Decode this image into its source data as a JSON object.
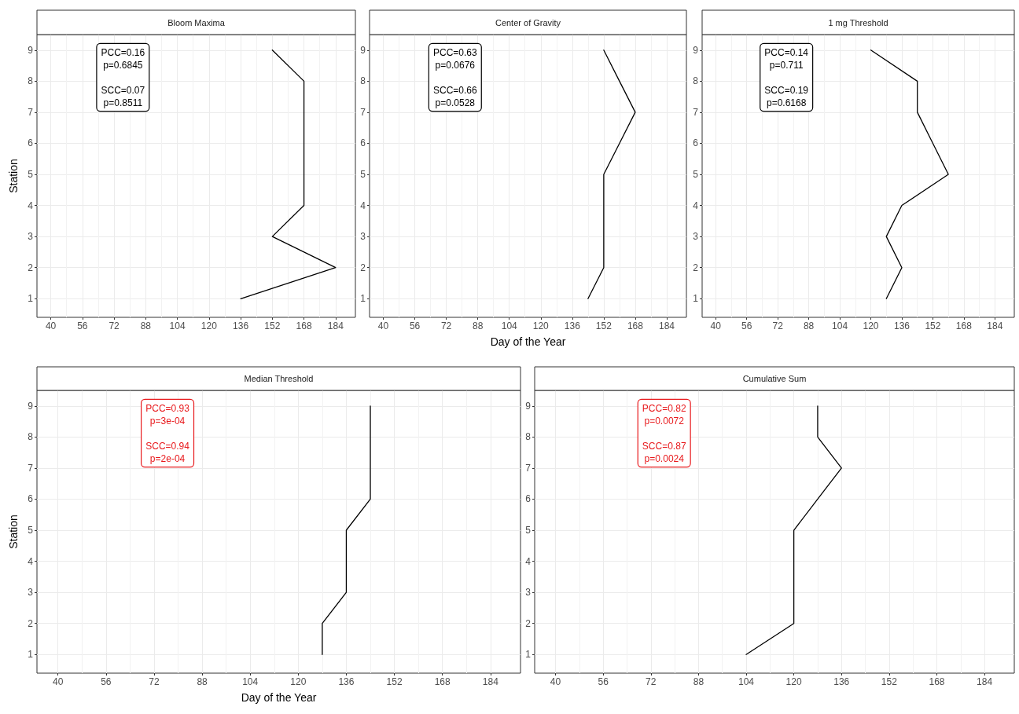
{
  "chart_data": [
    {
      "type": "line",
      "orientation": "horizontal",
      "title": "Bloom Maxima",
      "ylabel": "Station",
      "x": [
        1,
        2,
        3,
        4,
        5,
        6,
        7,
        8,
        9
      ],
      "values": [
        136,
        184,
        152,
        168,
        168,
        168,
        168,
        168,
        152
      ],
      "color": "#000000",
      "xlim": [
        33,
        194
      ],
      "xticks": [
        40,
        56,
        72,
        88,
        104,
        120,
        136,
        152,
        168,
        184
      ],
      "ylim": [
        0.4,
        9.5
      ],
      "yticks": [
        1,
        2,
        3,
        4,
        5,
        6,
        7,
        8,
        9
      ],
      "grid": true,
      "annotations": [
        "PCC=0.16\np=0.6845\n\nSCC=0.07\np=0.8511"
      ]
    },
    {
      "type": "line",
      "orientation": "horizontal",
      "title": "Center of Gravity",
      "xlabel": "Day of the Year",
      "x": [
        1,
        2,
        3,
        4,
        5,
        6,
        7,
        8,
        9
      ],
      "values": [
        144,
        152,
        152,
        152,
        152,
        160,
        168,
        160,
        152
      ],
      "color": "#000000",
      "xlim": [
        33,
        194
      ],
      "xticks": [
        40,
        56,
        72,
        88,
        104,
        120,
        136,
        152,
        168,
        184
      ],
      "ylim": [
        0.4,
        9.5
      ],
      "yticks": [
        1,
        2,
        3,
        4,
        5,
        6,
        7,
        8,
        9
      ],
      "grid": true,
      "annotations": [
        "PCC=0.63\np=0.0676\n\nSCC=0.66\np=0.0528"
      ]
    },
    {
      "type": "line",
      "orientation": "horizontal",
      "title": "1 mg Threshold",
      "x": [
        1,
        2,
        3,
        4,
        5,
        6,
        7,
        8,
        9
      ],
      "values": [
        128,
        136,
        128,
        136,
        160,
        152,
        144,
        144,
        120
      ],
      "color": "#000000",
      "xlim": [
        33,
        194
      ],
      "xticks": [
        40,
        56,
        72,
        88,
        104,
        120,
        136,
        152,
        168,
        184
      ],
      "ylim": [
        0.4,
        9.5
      ],
      "yticks": [
        1,
        2,
        3,
        4,
        5,
        6,
        7,
        8,
        9
      ],
      "grid": true,
      "annotations": [
        "PCC=0.14\np=0.711\n\nSCC=0.19\np=0.6168"
      ]
    },
    {
      "type": "line",
      "orientation": "horizontal",
      "title": "Median Threshold",
      "xlabel": "Day of the Year",
      "ylabel": "Station",
      "x": [
        1,
        2,
        3,
        4,
        5,
        6,
        7,
        8,
        9
      ],
      "values": [
        128,
        128,
        136,
        136,
        136,
        144,
        144,
        144,
        144
      ],
      "color": "#000000",
      "xlim": [
        33,
        194
      ],
      "xticks": [
        40,
        56,
        72,
        88,
        104,
        120,
        136,
        152,
        168,
        184
      ],
      "ylim": [
        0.4,
        9.5
      ],
      "yticks": [
        1,
        2,
        3,
        4,
        5,
        6,
        7,
        8,
        9
      ],
      "grid": true,
      "annotations": [
        "PCC=0.93\np=3e-04\n\nSCC=0.94\np=2e-04"
      ]
    },
    {
      "type": "line",
      "orientation": "horizontal",
      "title": "Cumulative Sum",
      "x": [
        1,
        2,
        3,
        4,
        5,
        6,
        7,
        8,
        9
      ],
      "values": [
        104,
        120,
        120,
        120,
        120,
        128,
        136,
        128,
        128
      ],
      "color": "#000000",
      "xlim": [
        33,
        194
      ],
      "xticks": [
        40,
        56,
        72,
        88,
        104,
        120,
        136,
        152,
        168,
        184
      ],
      "ylim": [
        0.4,
        9.5
      ],
      "yticks": [
        1,
        2,
        3,
        4,
        5,
        6,
        7,
        8,
        9
      ],
      "grid": true,
      "annotations": [
        "PCC=0.82\np=0.0072\n\nSCC=0.87\np=0.0024"
      ]
    }
  ]
}
